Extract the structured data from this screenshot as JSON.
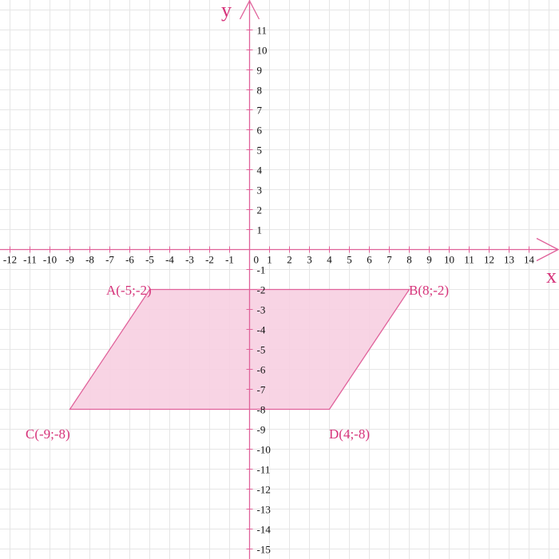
{
  "axes": {
    "x_label": "x",
    "y_label": "y",
    "x_ticks": [
      -12,
      -11,
      -10,
      -9,
      -8,
      -7,
      -6,
      -5,
      -4,
      -3,
      -2,
      -1,
      0,
      1,
      2,
      3,
      4,
      5,
      6,
      7,
      8,
      9,
      10,
      11,
      12,
      13,
      14
    ],
    "y_ticks": [
      11,
      10,
      9,
      8,
      7,
      6,
      5,
      4,
      3,
      2,
      1,
      -1,
      -2,
      -3,
      -4,
      -5,
      -6,
      -7,
      -8,
      -9,
      -10,
      -11,
      -12,
      -13,
      -14,
      -15
    ],
    "xlim": [
      -12.5,
      15.5
    ],
    "ylim": [
      -15.5,
      12.5
    ],
    "grid": true
  },
  "colors": {
    "accent": "#e0619a",
    "fill": "#f7cfe1",
    "label": "#d6337a"
  },
  "shape": {
    "vertices": [
      {
        "name": "A",
        "x": -5,
        "y": -2,
        "label": "A(-5;-2)"
      },
      {
        "name": "B",
        "x": 8,
        "y": -2,
        "label": "B(8;-2)"
      },
      {
        "name": "D",
        "x": 4,
        "y": -8,
        "label": "D(4;-8)"
      },
      {
        "name": "C",
        "x": -9,
        "y": -8,
        "label": "C(-9;-8)"
      }
    ]
  }
}
